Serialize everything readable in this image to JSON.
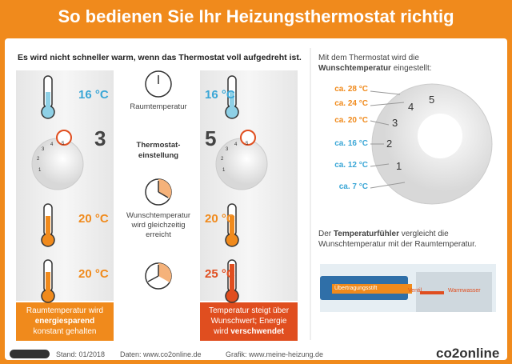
{
  "header": {
    "title": "So bedienen Sie Ihr Heizungsthermostat richtig"
  },
  "comparison": {
    "intro": "Es wird nicht schneller warm, wenn das Thermostat voll aufgedreht ist.",
    "left": {
      "room_temp": "16 °C",
      "setting": "3",
      "desired_temp": "20 °C",
      "result_temp": "20 °C",
      "caption": [
        "Raumtemperatur wird",
        "energiesparend",
        "konstant gehalten"
      ]
    },
    "middle": {
      "room_label": "Raumtemperatur",
      "setting_label": [
        "Thermostat-",
        "einstellung"
      ],
      "desired_label": [
        "Wunschtemperatur",
        "wird gleichzeitig",
        "erreicht"
      ]
    },
    "right": {
      "room_temp": "16 °C",
      "setting": "5",
      "desired_temp": "20 °C",
      "result_temp": "25 °C",
      "caption": [
        "Temperatur steigt über",
        "Wunschwert; Energie",
        "wird ",
        "verschwendet"
      ]
    }
  },
  "dial": {
    "intro": [
      "Mit dem Thermostat wird die",
      "Wunschtemperatur",
      " eingestellt:"
    ],
    "scale": [
      "ca. 28 °C",
      "ca. 24 °C",
      "ca. 20 °C",
      "ca. 16 °C",
      "ca. 12 °C",
      "ca. 7 °C"
    ],
    "numbers": [
      "1",
      "2",
      "3",
      "4",
      "5"
    ]
  },
  "sensor": {
    "text": [
      "Der ",
      "Temperaturfühler",
      " vergleicht die",
      "Wunschtemperatur mit der Raumtemperatur."
    ],
    "labels": {
      "pin": "Übertragungsstift",
      "valve": "Ventil",
      "water": "Warmwasser"
    }
  },
  "footer": {
    "date": "Stand: 01/2018",
    "data": "Daten: www.co2online.de",
    "graphic": "Grafik: www.meine-heizung.de",
    "brand": "co2online"
  }
}
